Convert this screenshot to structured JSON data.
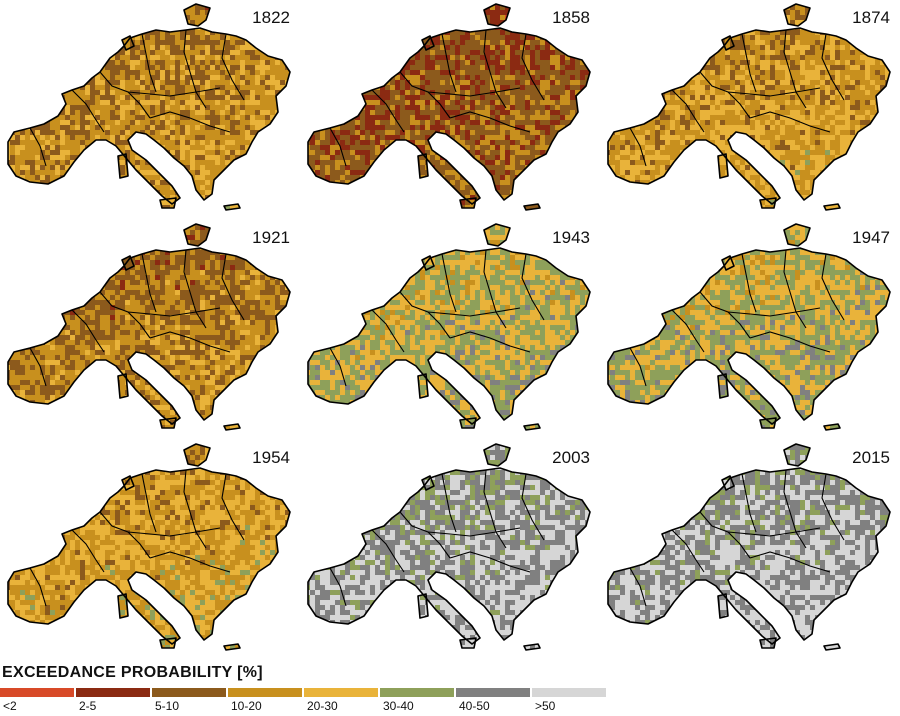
{
  "legend": {
    "title": "EXCEEDANCE PROBABILITY [%]",
    "classes": [
      {
        "label": "<2",
        "color": "#d84a28"
      },
      {
        "label": "2-5",
        "color": "#8b2a12"
      },
      {
        "label": "5-10",
        "color": "#8c5a1c"
      },
      {
        "label": "10-20",
        "color": "#c8901e"
      },
      {
        "label": "20-30",
        "color": "#e9b33a"
      },
      {
        "label": "30-40",
        "color": "#8ea05a"
      },
      {
        "label": "40-50",
        "color": "#808080"
      },
      {
        "label": ">50",
        "color": "#d6d6d6"
      }
    ]
  },
  "panels": [
    {
      "year": "1822"
    },
    {
      "year": "1858"
    },
    {
      "year": "1874"
    },
    {
      "year": "1921"
    },
    {
      "year": "1943"
    },
    {
      "year": "1947"
    },
    {
      "year": "1954"
    },
    {
      "year": "2003"
    },
    {
      "year": "2015"
    }
  ]
}
